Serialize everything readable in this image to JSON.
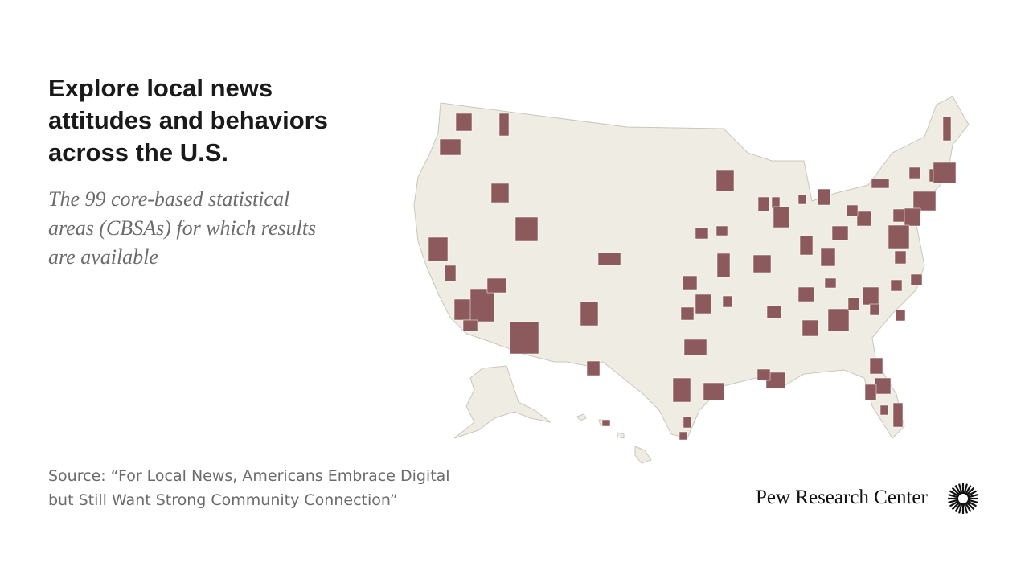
{
  "header": {
    "title_lines": [
      "Explore local news",
      "attitudes and behaviors",
      "across the U.S."
    ],
    "subtitle_lines": [
      "The 99 core-based statistical",
      "areas (CBSAs) for which results",
      "are available"
    ]
  },
  "footer": {
    "source_lines": [
      "Source: “For Local News, Americans Embrace Digital",
      "but Still Want Strong Community Connection”"
    ],
    "logo": "Pew Research Center"
  }
}
